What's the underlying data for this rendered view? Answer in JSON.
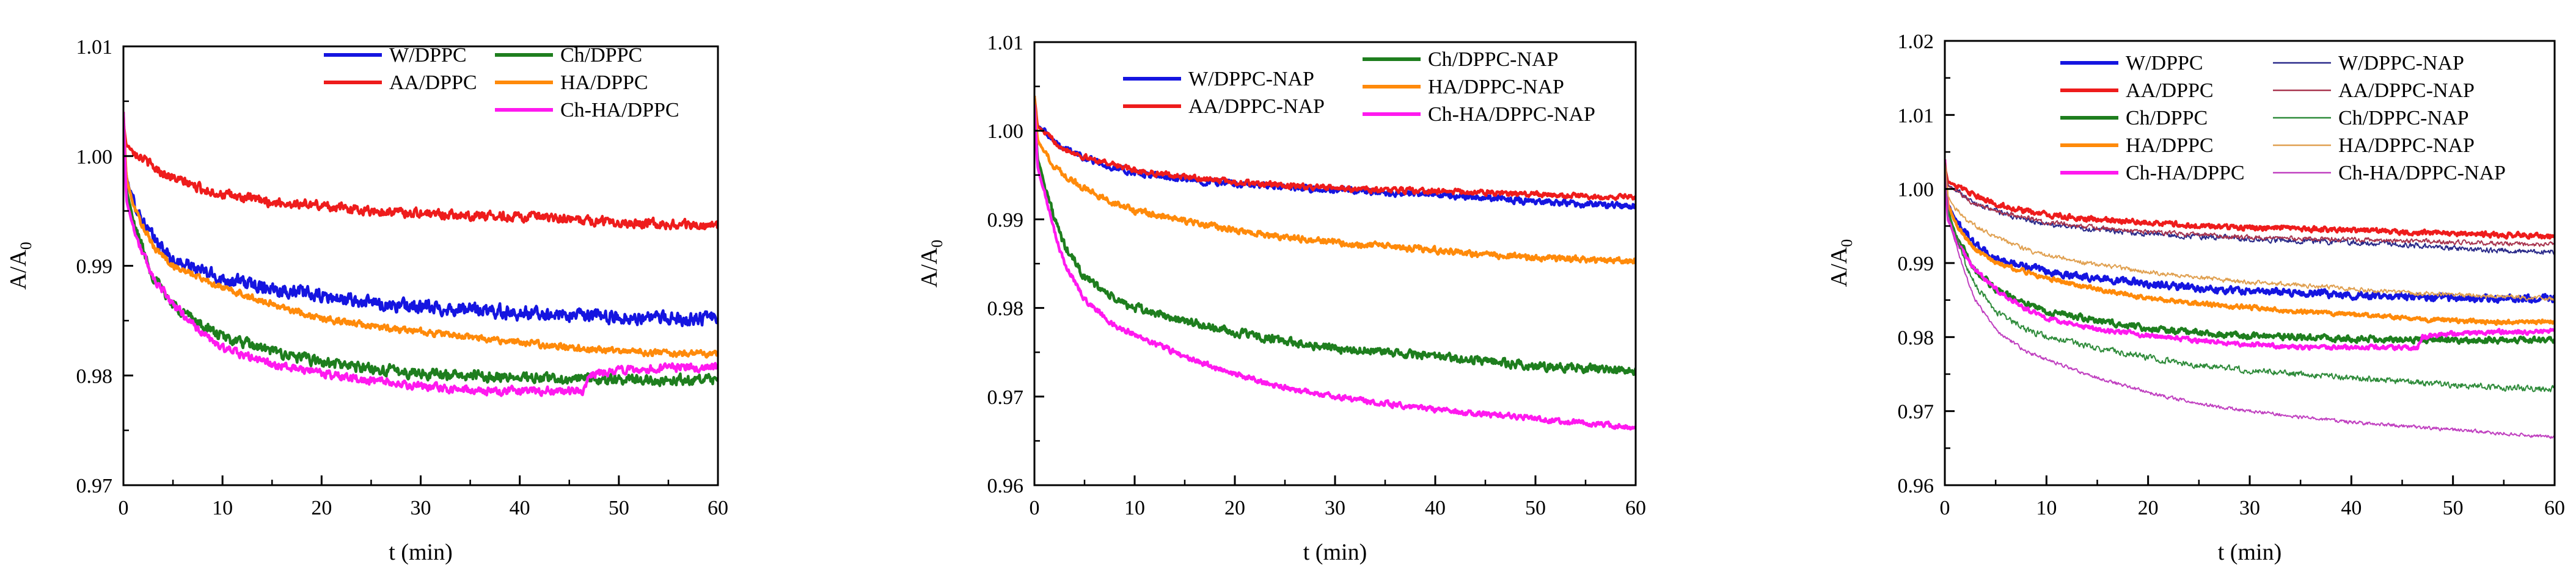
{
  "chart_data": [
    {
      "type": "line",
      "xlabel": "t (min)",
      "ylabel": "A/A",
      "ylabel_sub": "0",
      "xlim": [
        0,
        60
      ],
      "ylim": [
        0.97,
        1.01
      ],
      "xticks": [
        0,
        10,
        20,
        30,
        40,
        50,
        60
      ],
      "xtick_labels": [
        "0",
        "10",
        "20",
        "30",
        "40",
        "50",
        "60"
      ],
      "yticks": [
        0.97,
        0.98,
        0.99,
        1.0,
        1.01
      ],
      "ytick_labels": [
        "0.97",
        "0.98",
        "0.99",
        "1.00",
        "1.01"
      ],
      "legend_placement": "top-right",
      "series": [
        {
          "name": "W/DPPC",
          "color": "#1515e0",
          "weight": "thick",
          "noise": 0.001,
          "x": [
            0,
            0.3,
            1,
            2,
            3,
            5,
            8,
            10,
            15,
            20,
            25,
            30,
            35,
            40,
            45,
            50,
            55,
            60
          ],
          "y": [
            1.003,
            0.998,
            0.996,
            0.994,
            0.9925,
            0.9905,
            0.9895,
            0.9888,
            0.988,
            0.9872,
            0.9866,
            0.9862,
            0.986,
            0.9857,
            0.9855,
            0.9853,
            0.9852,
            0.9852
          ]
        },
        {
          "name": "AA/DPPC",
          "color": "#ee1c1c",
          "weight": "thick",
          "noise": 0.0007,
          "x": [
            0,
            0.3,
            1,
            2,
            3,
            5,
            8,
            10,
            15,
            20,
            25,
            30,
            35,
            40,
            45,
            50,
            55,
            60
          ],
          "y": [
            1.003,
            1.001,
            1.0005,
            0.9998,
            0.999,
            0.998,
            0.997,
            0.9965,
            0.9958,
            0.9955,
            0.995,
            0.9948,
            0.9946,
            0.9945,
            0.9942,
            0.994,
            0.9938,
            0.9936
          ]
        },
        {
          "name": "Ch/DPPC",
          "color": "#1e7e1e",
          "weight": "thick",
          "noise": 0.0008,
          "x": [
            0,
            0.3,
            1,
            2,
            3,
            5,
            8,
            10,
            15,
            20,
            25,
            30,
            35,
            40,
            45,
            50,
            55,
            60
          ],
          "y": [
            1.003,
            0.997,
            0.994,
            0.9915,
            0.989,
            0.9865,
            0.9845,
            0.9835,
            0.9822,
            0.9812,
            0.9806,
            0.9802,
            0.98,
            0.9798,
            0.9797,
            0.9796,
            0.9796,
            0.9795
          ]
        },
        {
          "name": "HA/DPPC",
          "color": "#ff8a0a",
          "weight": "thick",
          "noise": 0.0005,
          "x": [
            0,
            0.3,
            1,
            2,
            3,
            5,
            8,
            10,
            15,
            20,
            25,
            30,
            35,
            40,
            45,
            50,
            55,
            60
          ],
          "y": [
            1.004,
            0.998,
            0.9955,
            0.9935,
            0.9918,
            0.99,
            0.9888,
            0.988,
            0.9865,
            0.9852,
            0.9845,
            0.984,
            0.9835,
            0.983,
            0.9826,
            0.9822,
            0.982,
            0.982
          ]
        },
        {
          "name": "Ch-HA/DPPC",
          "color": "#ff19ef",
          "weight": "thick",
          "noise": 0.0006,
          "x": [
            0,
            0.3,
            1,
            2,
            3,
            5,
            8,
            10,
            15,
            20,
            25,
            30,
            35,
            40,
            45,
            46.5,
            47,
            50,
            55,
            60
          ],
          "y": [
            1.004,
            0.996,
            0.9935,
            0.991,
            0.989,
            0.9865,
            0.9838,
            0.9825,
            0.981,
            0.9802,
            0.9795,
            0.979,
            0.9786,
            0.9786,
            0.9786,
            0.9786,
            0.98,
            0.9805,
            0.9807,
            0.9808
          ]
        }
      ]
    },
    {
      "type": "line",
      "xlabel": "t (min)",
      "ylabel": "A/A",
      "ylabel_sub": "0",
      "xlim": [
        0,
        60
      ],
      "ylim": [
        0.96,
        1.01
      ],
      "xticks": [
        0,
        10,
        20,
        30,
        40,
        50,
        60
      ],
      "xtick_labels": [
        "0",
        "10",
        "20",
        "30",
        "40",
        "50",
        "60"
      ],
      "yticks": [
        0.96,
        0.97,
        0.98,
        0.99,
        1.0,
        1.01
      ],
      "ytick_labels": [
        "0.96",
        "0.97",
        "0.98",
        "0.99",
        "1.00",
        "1.01"
      ],
      "legend_placement": "top-right",
      "series": [
        {
          "name": "W/DPPC-NAP",
          "color": "#1515e0",
          "weight": "thick",
          "noise": 0.0006,
          "x": [
            0,
            0.3,
            1,
            2,
            3,
            5,
            8,
            10,
            15,
            20,
            25,
            30,
            35,
            40,
            45,
            50,
            55,
            60
          ],
          "y": [
            1.003,
            1.0005,
            1.0,
            0.999,
            0.998,
            0.997,
            0.9958,
            0.9952,
            0.9945,
            0.994,
            0.9936,
            0.9933,
            0.993,
            0.9928,
            0.9925,
            0.992,
            0.9917,
            0.9915
          ]
        },
        {
          "name": "AA/DPPC-NAP",
          "color": "#ee1c1c",
          "weight": "thick",
          "noise": 0.0005,
          "x": [
            0,
            0.3,
            1,
            2,
            3,
            5,
            8,
            10,
            15,
            20,
            25,
            30,
            35,
            40,
            45,
            50,
            55,
            60
          ],
          "y": [
            1.004,
            1.0005,
            0.9998,
            0.9988,
            0.998,
            0.997,
            0.9962,
            0.9955,
            0.9948,
            0.9942,
            0.9938,
            0.9935,
            0.9933,
            0.9932,
            0.993,
            0.9928,
            0.9926,
            0.9925
          ]
        },
        {
          "name": "Ch/DPPC-NAP",
          "color": "#1e7e1e",
          "weight": "thick",
          "noise": 0.0008,
          "x": [
            0,
            0.3,
            1,
            2,
            3,
            5,
            8,
            10,
            15,
            20,
            25,
            30,
            35,
            40,
            45,
            50,
            55,
            60
          ],
          "y": [
            1.003,
            0.997,
            0.994,
            0.99,
            0.987,
            0.9835,
            0.981,
            0.98,
            0.9785,
            0.9772,
            0.9762,
            0.9755,
            0.975,
            0.9745,
            0.974,
            0.9735,
            0.9732,
            0.973
          ]
        },
        {
          "name": "HA/DPPC-NAP",
          "color": "#ff8a0a",
          "weight": "thick",
          "noise": 0.0006,
          "x": [
            0,
            0.3,
            1,
            2,
            3,
            5,
            8,
            10,
            15,
            20,
            25,
            30,
            35,
            40,
            45,
            50,
            55,
            60
          ],
          "y": [
            1.004,
            0.999,
            0.9975,
            0.996,
            0.995,
            0.9935,
            0.9918,
            0.991,
            0.9898,
            0.9888,
            0.988,
            0.9874,
            0.987,
            0.9865,
            0.986,
            0.9857,
            0.9855,
            0.9852
          ]
        },
        {
          "name": "Ch-HA/DPPC-NAP",
          "color": "#ff19ef",
          "weight": "thick",
          "noise": 0.0005,
          "x": [
            0,
            0.3,
            1,
            2,
            3,
            5,
            8,
            10,
            15,
            20,
            25,
            30,
            35,
            40,
            45,
            50,
            55,
            60
          ],
          "y": [
            1.003,
            0.996,
            0.993,
            0.9885,
            0.985,
            0.981,
            0.978,
            0.977,
            0.9745,
            0.9725,
            0.971,
            0.97,
            0.9692,
            0.9685,
            0.968,
            0.9675,
            0.967,
            0.9665
          ]
        }
      ]
    },
    {
      "type": "line",
      "xlabel": "t (min)",
      "ylabel": "A/A",
      "ylabel_sub": "0",
      "xlim": [
        0,
        60
      ],
      "ylim": [
        0.96,
        1.02
      ],
      "xticks": [
        0,
        10,
        20,
        30,
        40,
        50,
        60
      ],
      "xtick_labels": [
        "0",
        "10",
        "20",
        "30",
        "40",
        "50",
        "60"
      ],
      "yticks": [
        0.96,
        0.97,
        0.98,
        0.99,
        1.0,
        1.01,
        1.02
      ],
      "ytick_labels": [
        "0.96",
        "0.97",
        "0.98",
        "0.99",
        "1.00",
        "1.01",
        "1.02"
      ],
      "legend_placement": "top-right",
      "series": [
        {
          "name": "W/DPPC",
          "color": "#1515e0",
          "weight": "thick",
          "noise": 0.0008,
          "x": [
            0,
            0.3,
            1,
            2,
            3,
            5,
            8,
            10,
            15,
            20,
            25,
            30,
            35,
            40,
            45,
            50,
            55,
            60
          ],
          "y": [
            1.003,
            0.998,
            0.996,
            0.994,
            0.9925,
            0.9905,
            0.9895,
            0.9888,
            0.988,
            0.9872,
            0.9866,
            0.9862,
            0.986,
            0.9857,
            0.9855,
            0.9853,
            0.9852,
            0.9852
          ]
        },
        {
          "name": "AA/DPPC",
          "color": "#ee1c1c",
          "weight": "thick",
          "noise": 0.0006,
          "x": [
            0,
            0.3,
            1,
            2,
            3,
            5,
            8,
            10,
            15,
            20,
            25,
            30,
            35,
            40,
            45,
            50,
            55,
            60
          ],
          "y": [
            1.003,
            1.001,
            1.0005,
            0.9998,
            0.999,
            0.998,
            0.997,
            0.9965,
            0.9958,
            0.9955,
            0.995,
            0.9948,
            0.9946,
            0.9945,
            0.9942,
            0.994,
            0.9938,
            0.9936
          ]
        },
        {
          "name": "Ch/DPPC",
          "color": "#1e7e1e",
          "weight": "thick",
          "noise": 0.0007,
          "x": [
            0,
            0.3,
            1,
            2,
            3,
            5,
            8,
            10,
            15,
            20,
            25,
            30,
            35,
            40,
            45,
            50,
            55,
            60
          ],
          "y": [
            1.003,
            0.997,
            0.994,
            0.9915,
            0.989,
            0.9865,
            0.9845,
            0.9835,
            0.9822,
            0.9812,
            0.9806,
            0.9802,
            0.98,
            0.9798,
            0.9797,
            0.9796,
            0.9796,
            0.9795
          ]
        },
        {
          "name": "HA/DPPC",
          "color": "#ff8a0a",
          "weight": "thick",
          "noise": 0.0005,
          "x": [
            0,
            0.3,
            1,
            2,
            3,
            5,
            8,
            10,
            15,
            20,
            25,
            30,
            35,
            40,
            45,
            50,
            55,
            60
          ],
          "y": [
            1.004,
            0.998,
            0.9955,
            0.9935,
            0.9918,
            0.99,
            0.9888,
            0.988,
            0.9865,
            0.9852,
            0.9845,
            0.984,
            0.9835,
            0.983,
            0.9826,
            0.9822,
            0.982,
            0.982
          ]
        },
        {
          "name": "Ch-HA/DPPC",
          "color": "#ff19ef",
          "weight": "thick",
          "noise": 0.0005,
          "x": [
            0,
            0.3,
            1,
            2,
            3,
            5,
            8,
            10,
            15,
            20,
            25,
            30,
            35,
            40,
            45,
            46.5,
            47,
            50,
            55,
            60
          ],
          "y": [
            1.004,
            0.996,
            0.9935,
            0.991,
            0.989,
            0.9865,
            0.9838,
            0.9825,
            0.981,
            0.9802,
            0.9795,
            0.979,
            0.9786,
            0.9786,
            0.9786,
            0.9786,
            0.98,
            0.9805,
            0.9807,
            0.9808
          ]
        },
        {
          "name": "W/DPPC-NAP",
          "color": "#2a2a8a",
          "weight": "thin",
          "noise": 0.0006,
          "x": [
            0,
            0.3,
            1,
            2,
            3,
            5,
            8,
            10,
            15,
            20,
            25,
            30,
            35,
            40,
            45,
            50,
            55,
            60
          ],
          "y": [
            1.003,
            1.0005,
            1.0,
            0.999,
            0.998,
            0.997,
            0.9958,
            0.9952,
            0.9945,
            0.994,
            0.9936,
            0.9933,
            0.993,
            0.9928,
            0.9925,
            0.992,
            0.9917,
            0.9915
          ]
        },
        {
          "name": "AA/DPPC-NAP",
          "color": "#a8344e",
          "weight": "thin",
          "noise": 0.0005,
          "x": [
            0,
            0.3,
            1,
            2,
            3,
            5,
            8,
            10,
            15,
            20,
            25,
            30,
            35,
            40,
            45,
            50,
            55,
            60
          ],
          "y": [
            1.004,
            1.0005,
            0.9998,
            0.9988,
            0.998,
            0.997,
            0.9962,
            0.9955,
            0.9948,
            0.9942,
            0.9938,
            0.9935,
            0.9933,
            0.9932,
            0.993,
            0.9928,
            0.9926,
            0.9925
          ]
        },
        {
          "name": "Ch/DPPC-NAP",
          "color": "#2e8b3a",
          "weight": "thin",
          "noise": 0.0007,
          "x": [
            0,
            0.3,
            1,
            2,
            3,
            5,
            8,
            10,
            15,
            20,
            25,
            30,
            35,
            40,
            45,
            50,
            55,
            60
          ],
          "y": [
            1.003,
            0.997,
            0.994,
            0.99,
            0.987,
            0.9835,
            0.981,
            0.98,
            0.9785,
            0.9772,
            0.9762,
            0.9755,
            0.975,
            0.9745,
            0.974,
            0.9735,
            0.9732,
            0.973
          ]
        },
        {
          "name": "HA/DPPC-NAP",
          "color": "#e0a050",
          "weight": "thin",
          "noise": 0.0005,
          "x": [
            0,
            0.3,
            1,
            2,
            3,
            5,
            8,
            10,
            15,
            20,
            25,
            30,
            35,
            40,
            45,
            50,
            55,
            60
          ],
          "y": [
            1.004,
            0.999,
            0.9975,
            0.996,
            0.995,
            0.9935,
            0.9918,
            0.991,
            0.9898,
            0.9888,
            0.988,
            0.9874,
            0.987,
            0.9865,
            0.986,
            0.9857,
            0.9855,
            0.9852
          ]
        },
        {
          "name": "Ch-HA/DPPC-NAP",
          "color": "#c040c0",
          "weight": "thin",
          "noise": 0.0004,
          "x": [
            0,
            0.3,
            1,
            2,
            3,
            5,
            8,
            10,
            15,
            20,
            25,
            30,
            35,
            40,
            45,
            50,
            55,
            60
          ],
          "y": [
            1.003,
            0.996,
            0.993,
            0.9885,
            0.985,
            0.981,
            0.978,
            0.977,
            0.9745,
            0.9725,
            0.971,
            0.97,
            0.9692,
            0.9685,
            0.968,
            0.9675,
            0.967,
            0.9665
          ]
        }
      ]
    }
  ]
}
